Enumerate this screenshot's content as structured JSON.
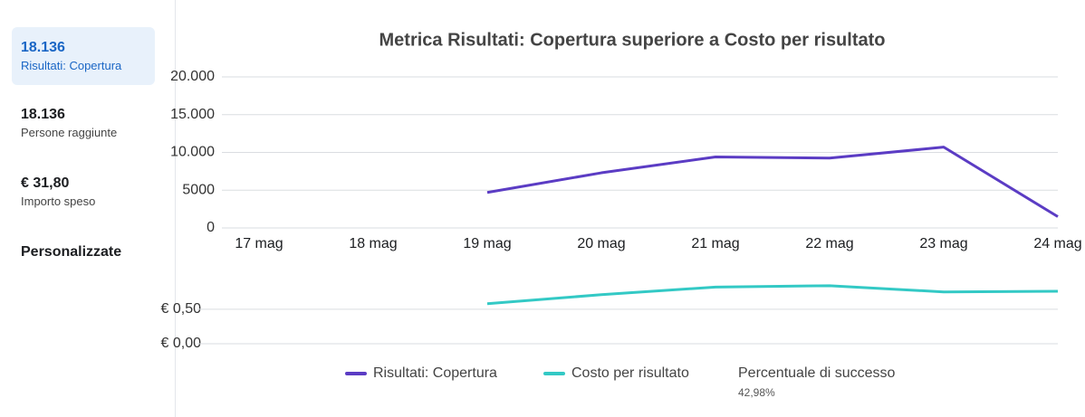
{
  "sidebar": {
    "metrics": [
      {
        "value": "18.136",
        "label": "Risultati: Copertura"
      },
      {
        "value": "18.136",
        "label": "Persone raggiunte"
      },
      {
        "value": "€ 31,80",
        "label": "Importo speso"
      }
    ],
    "custom": "Personalizzate"
  },
  "chart_data": [
    {
      "type": "line",
      "title": "Metrica Risultati: Copertura superiore a Costo per risultato",
      "categories": [
        "17 mag",
        "18 mag",
        "19 mag",
        "20 mag",
        "21 mag",
        "22 mag",
        "23 mag",
        "24 mag"
      ],
      "series": [
        {
          "name": "Risultati: Copertura",
          "color": "#5b3cc4",
          "values": [
            null,
            null,
            4700,
            7300,
            9400,
            9250,
            10700,
            1500
          ]
        }
      ],
      "ylim": [
        0,
        20000
      ],
      "yticks": [
        0,
        5000,
        {
          "value": 10000,
          "label": "10.000"
        },
        {
          "value": 15000,
          "label": "15.000"
        },
        {
          "value": 20000,
          "label": "20.000"
        }
      ],
      "grid": true
    },
    {
      "type": "line",
      "series": [
        {
          "name": "Costo per risultato",
          "color": "#33c9c5",
          "values": [
            null,
            null,
            0.58,
            0.71,
            0.82,
            0.84,
            0.75,
            0.76
          ]
        }
      ],
      "ylim": [
        0,
        1.1
      ],
      "yticks": [
        {
          "value": 0,
          "label": "€ 0,00"
        },
        {
          "value": 0.5,
          "label": "€ 0,50"
        }
      ],
      "grid": true
    }
  ],
  "legend_note": {
    "name": "Percentuale di successo",
    "value": "42,98%"
  }
}
